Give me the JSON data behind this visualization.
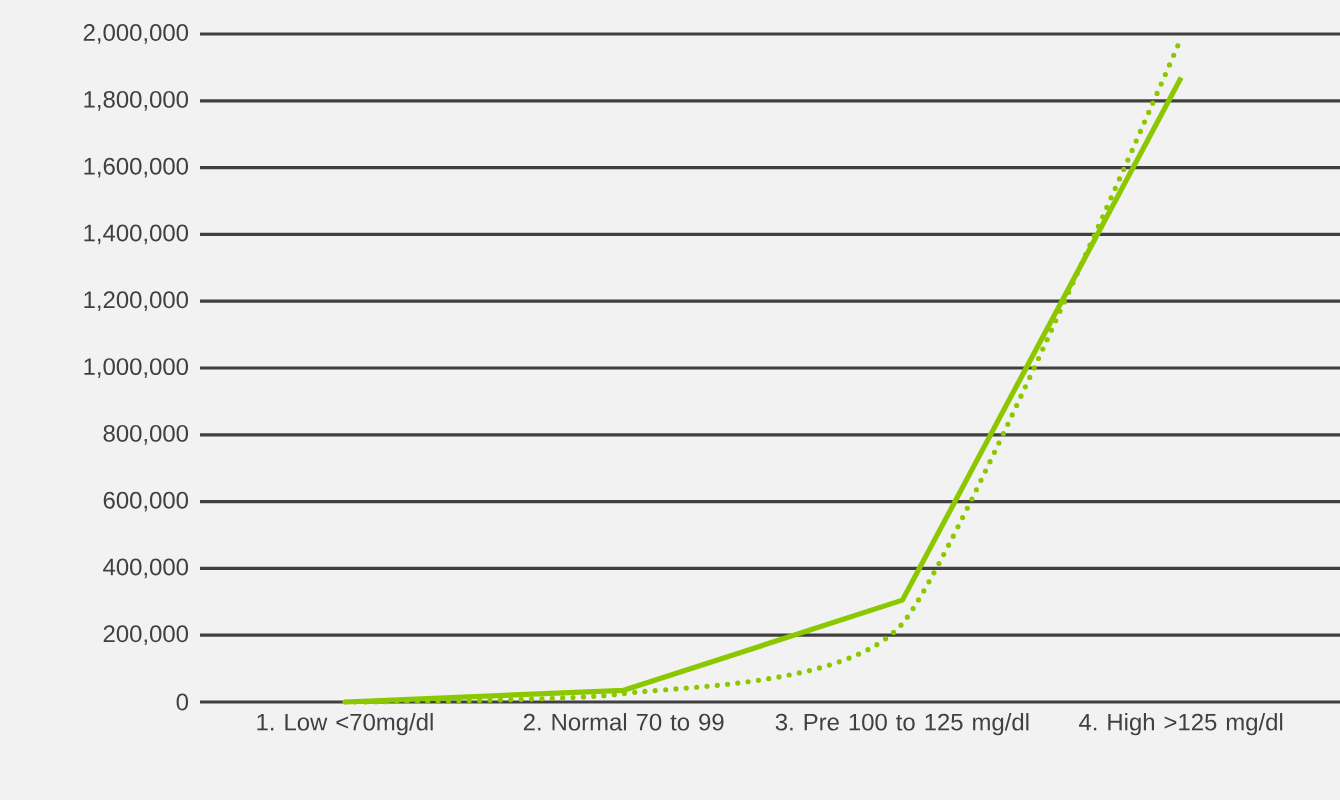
{
  "chart_data": {
    "type": "line",
    "categories": [
      "1. Low <70mg/dl",
      "2. Normal 70 to 99",
      "3. Pre 100 to 125 mg/dl",
      "4. High >125 mg/dl"
    ],
    "series": [
      {
        "color": "#8cc800",
        "values": [
          0,
          35000,
          305000,
          1870000
        ],
        "line_style": "solid"
      },
      {
        "type": "line",
        "color": "#8cc800",
        "line_style": "dotted",
        "values": [
          0,
          25000,
          235000,
          1988000
        ]
      }
    ],
    "ylim": [
      0,
      2000000
    ],
    "yticks": [
      {
        "value": 0,
        "label": "0"
      },
      {
        "value": 200000,
        "label": "200,000"
      },
      {
        "value": 400000,
        "label": "400,000"
      },
      {
        "value": 600000,
        "label": "600,000"
      },
      {
        "value": 800000,
        "label": "800,000"
      },
      {
        "value": 1000000,
        "label": "1,000,000"
      },
      {
        "value": 1200000,
        "label": "1,200,000"
      },
      {
        "value": 1400000,
        "label": "1,400,000"
      },
      {
        "value": 1600000,
        "label": "1,600,000"
      },
      {
        "value": 1800000,
        "label": "1,800,000"
      },
      {
        "value": 2000000,
        "label": "2,000,000"
      }
    ],
    "grid": "y",
    "marker": "none"
  }
}
